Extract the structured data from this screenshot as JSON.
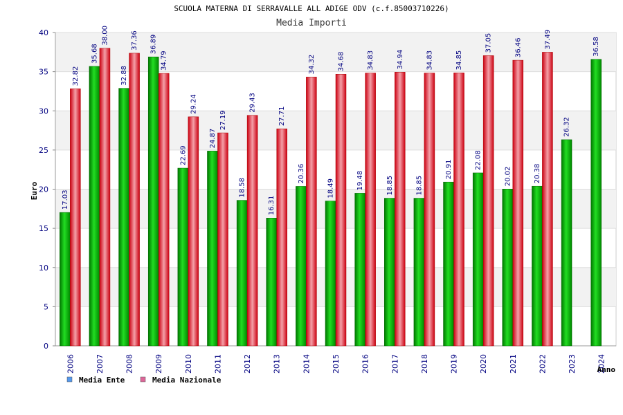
{
  "chart_data": {
    "type": "bar",
    "title": "SCUOLA MATERNA DI SERRAVALLE ALL ADIGE ODV (c.f.85003710226)",
    "subtitle": "Media Importi",
    "xlabel": "Anno",
    "ylabel": "Euro",
    "ylim": [
      0,
      40
    ],
    "yticks": [
      0,
      5,
      10,
      15,
      20,
      25,
      30,
      35,
      40
    ],
    "categories": [
      "2006",
      "2007",
      "2008",
      "2009",
      "2010",
      "2011",
      "2012",
      "2013",
      "2014",
      "2015",
      "2016",
      "2017",
      "2018",
      "2019",
      "2020",
      "2021",
      "2022",
      "2023",
      "2024"
    ],
    "series": [
      {
        "name": "Media Ente",
        "color": "#00aa00",
        "legend_color": "#5599ee",
        "values": [
          17.03,
          35.68,
          32.88,
          36.89,
          22.69,
          24.87,
          18.58,
          16.31,
          20.36,
          18.49,
          19.48,
          18.85,
          18.85,
          20.91,
          22.08,
          20.02,
          20.38,
          26.32,
          36.58
        ],
        "labels": [
          "17.03",
          "35.68",
          "32.88",
          "36.89",
          "22.69",
          "24.87",
          "18.58",
          "16.31",
          "20.36",
          "18.49",
          "19.48",
          "18.85",
          "18.85",
          "20.91",
          "22.08",
          "20.02",
          "20.38",
          "26.32",
          "36.58"
        ]
      },
      {
        "name": "Media Nazionale",
        "color": "#dd1122",
        "legend_color": "#dd6699",
        "values": [
          32.82,
          38.0,
          37.36,
          34.79,
          29.24,
          27.19,
          29.43,
          27.71,
          34.32,
          34.68,
          34.83,
          34.94,
          34.83,
          34.85,
          37.05,
          36.46,
          37.49,
          null,
          null
        ],
        "labels": [
          "32.82",
          "38.00",
          "37.36",
          "34.79",
          "29.24",
          "27.19",
          "29.43",
          "27.71",
          "34.32",
          "34.68",
          "34.83",
          "34.94",
          "34.83",
          "34.85",
          "37.05",
          "36.46",
          "37.49",
          "",
          ""
        ]
      }
    ],
    "grid": true,
    "legend": "bottom-left"
  }
}
